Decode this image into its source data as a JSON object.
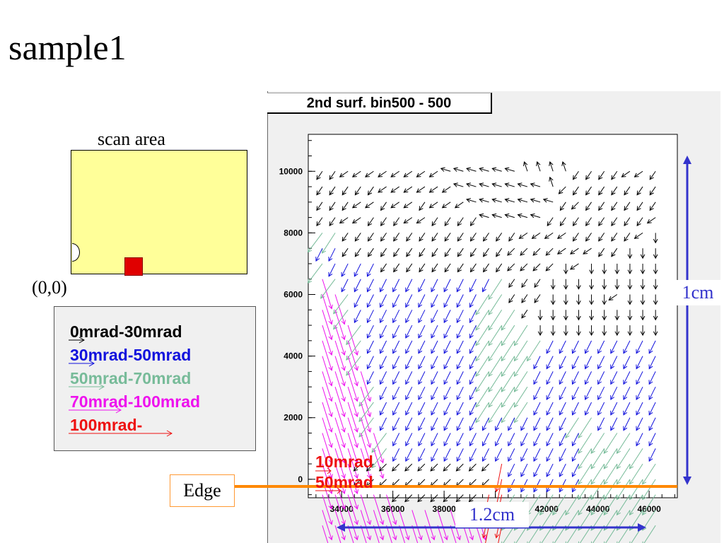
{
  "slide": {
    "title": "sample1"
  },
  "scan": {
    "label": "scan area",
    "origin": "(0,0)"
  },
  "legend": [
    {
      "label": "0mrad-30mrad",
      "color": "#000000"
    },
    {
      "label": "30mrad-50mrad",
      "color": "#1111dd"
    },
    {
      "label": "50mrad-70mrad",
      "color": "#77bb99"
    },
    {
      "label": "70mrad-100mrad",
      "color": "#ee11ee"
    },
    {
      "label": "100mrad-",
      "color": "#ee1111"
    }
  ],
  "annotations": {
    "edge": "Edge",
    "scale_y": "1cm",
    "scale_x": "1.2cm"
  },
  "colors": {
    "edge_line": "#ff8800",
    "scale_arrow": "#3333cc",
    "scan_area": "#ffff99"
  },
  "chart_data": {
    "type": "vector field",
    "title": "2nd surf. bin500 - 500",
    "xlabel": "",
    "ylabel": "",
    "xlim": [
      32700,
      47100
    ],
    "ylim": [
      -600,
      11200
    ],
    "xticks": [
      "34000",
      "36000",
      "38000",
      "40000",
      "42000",
      "44000",
      "46000"
    ],
    "xtick_values": [
      34000,
      36000,
      38000,
      40000,
      42000,
      44000,
      46000
    ],
    "yticks": [
      "0",
      "2000",
      "4000",
      "6000",
      "8000",
      "10000"
    ],
    "ytick_values": [
      0,
      2000,
      4000,
      6000,
      8000,
      10000
    ],
    "in_plot_labels": [
      "10mrad",
      "50mrad"
    ],
    "grid": false,
    "bins": {
      "x_start": 33250,
      "x_step": 500,
      "y_start": 10000,
      "y_step": -500
    },
    "color_classes": [
      "#000000",
      "#1111dd",
      "#77bb99",
      "#ee11ee",
      "#ee1111"
    ],
    "field_rows": [
      "kkjjjjjjjjnnnnnnmmmmkkkkjjk",
      "kkkkkjjjjjjnnnnnnnmlkkkkkkk",
      "kkkjjkjjkjjjnnnnnnnklkkkkkk",
      "kkjjkkkjjkkkknnnnnkkkkkkkkj",
      "cCkkkkkkkkkkkkkkjjjjkkkkkji",
      "BBkkkkkkkkkkkkklllljjjkkiii",
      "cBBBBkkkkkkkkkkllllijiiiiii",
      "XcBBBBBBBBBBBBCkkkiiiiiiiii",
      "XXcBBBBBBBBBBCCkkkiiiiijiii",
      "XXcBBBBBBBBBBCCCkiiiiiiiiii",
      "XXXcBBBBBBBBBCCCCiiiiiiiiii",
      "XXXcBBBBBBBBBCCCCCBBBBBBBBB",
      "XXXcBBBBBBBBBCCCCBBBBBBBBBB",
      "XXXXBBBBBBBBBCCCCBBBBBBBBBB",
      "XXXXcBBBBBBBBCCCCBBBBBBBBBB",
      "XXXXcBBBBBBBBCCCCBBBBBBBBBB",
      "XXXXcBBBBBBBBBBBBBBBCCBBBBB",
      "XXXXXcBBBBBBBBBBBBBBBCCCCBB",
      "XXXXXcBBBBBBBBBBBBBBBCCCCCB",
      "XXXlllllllllllDBBBBBBCCCCCC",
      "XXXlllllllllllDBBBBBBCCCCCC",
      "XXXXXXlllllllDDCCCCCCCCCCCC",
      "XXXXXXXXXXXXXDDCCCCCCCCCCCC",
      "XXXXXXXXXXXXXDDCCCCCCCCCCCC"
    ]
  }
}
